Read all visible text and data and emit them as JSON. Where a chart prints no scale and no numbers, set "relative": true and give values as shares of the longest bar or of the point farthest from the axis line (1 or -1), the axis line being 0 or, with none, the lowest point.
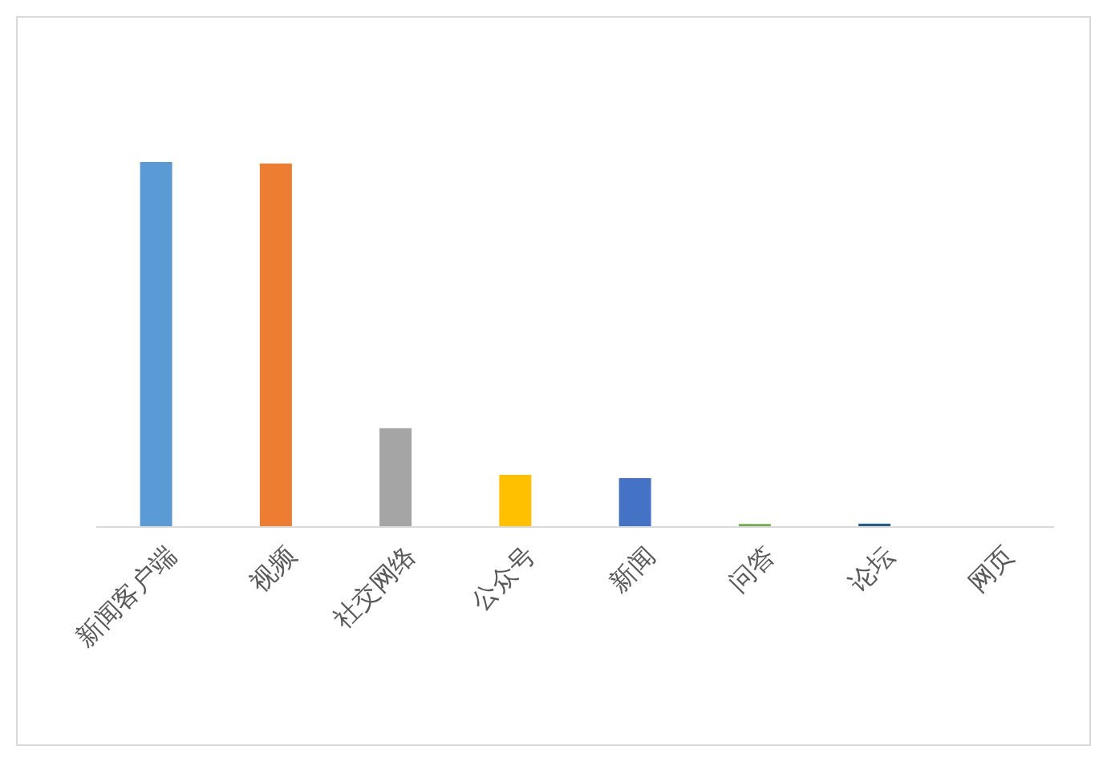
{
  "chart_data": {
    "type": "bar",
    "relative": true,
    "categories": [
      "新闻客户端",
      "视频",
      "社交网络",
      "公众号",
      "新闻",
      "问答",
      "论坛",
      "网页"
    ],
    "values": [
      1,
      0.996,
      0.269,
      0.141,
      0.132,
      0.006,
      0.007,
      0
    ],
    "colors": [
      "#5b9bd5",
      "#ed7d31",
      "#a5a5a5",
      "#ffc000",
      "#4472c4",
      "#70ad47",
      "#255e91",
      "#9e480e"
    ]
  }
}
